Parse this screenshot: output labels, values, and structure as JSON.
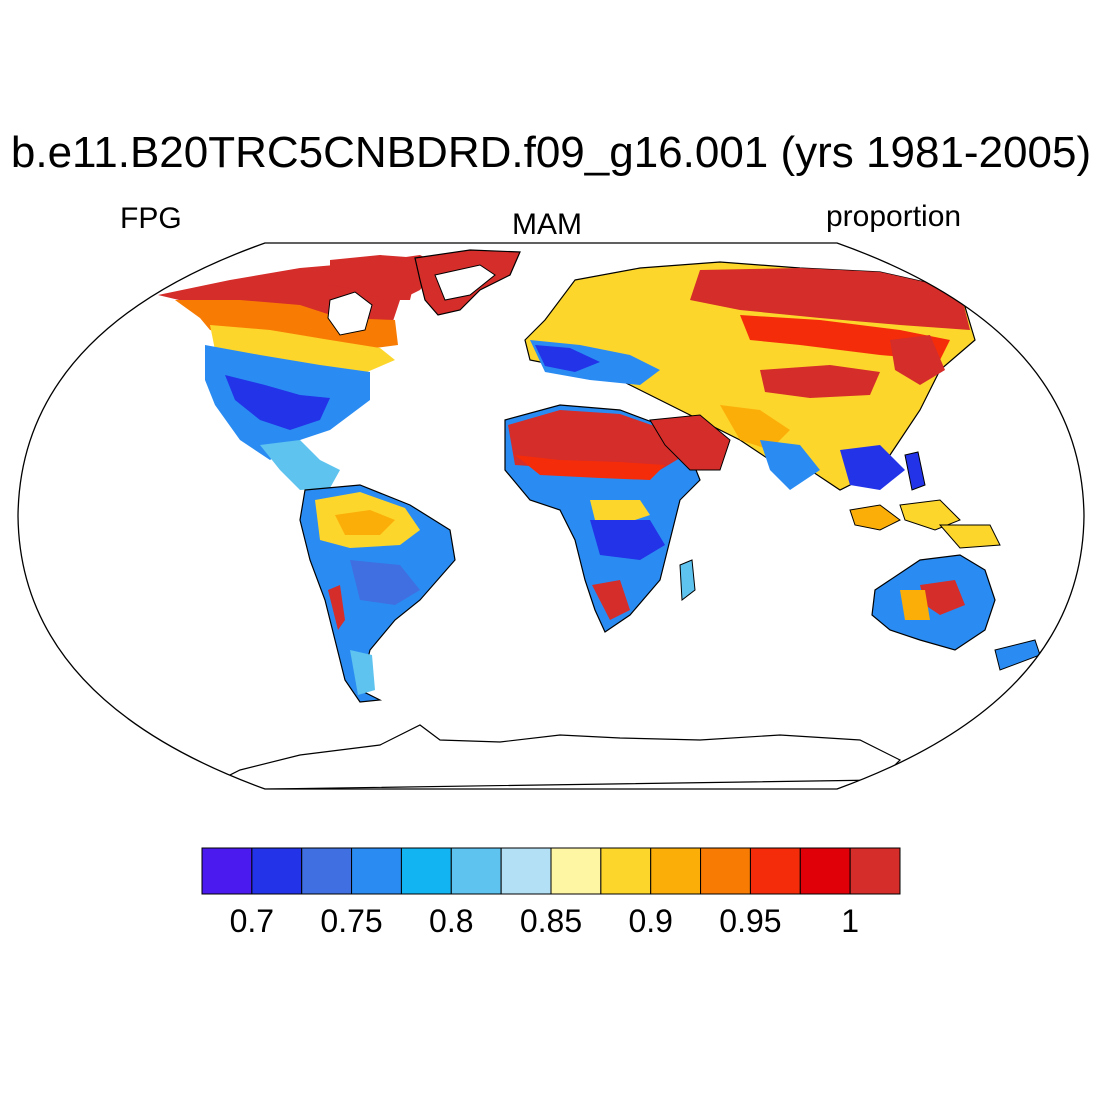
{
  "title": "b.e11.B20TRC5CNBDRD.f09_g16.001 (yrs 1981-2005)",
  "left_label": "FPG",
  "center_label": "MAM",
  "right_label": "proportion",
  "colorbar": {
    "colors": [
      "#4a1aef",
      "#2233e8",
      "#3f6fe0",
      "#2a8cf2",
      "#12b4f2",
      "#5ec3ef",
      "#b4e0f5",
      "#fff6a4",
      "#fdd62c",
      "#fbae08",
      "#f87c04",
      "#f52c0a",
      "#e00008",
      "#d42d2a"
    ],
    "labels": [
      "0.7",
      "0.75",
      "0.8",
      "0.85",
      "0.9",
      "0.95",
      "1"
    ]
  },
  "map_data": {
    "projection": "Robinson",
    "variable": "FPG",
    "season": "MAM",
    "units": "proportion",
    "color_range": [
      0.7,
      1.0
    ]
  }
}
